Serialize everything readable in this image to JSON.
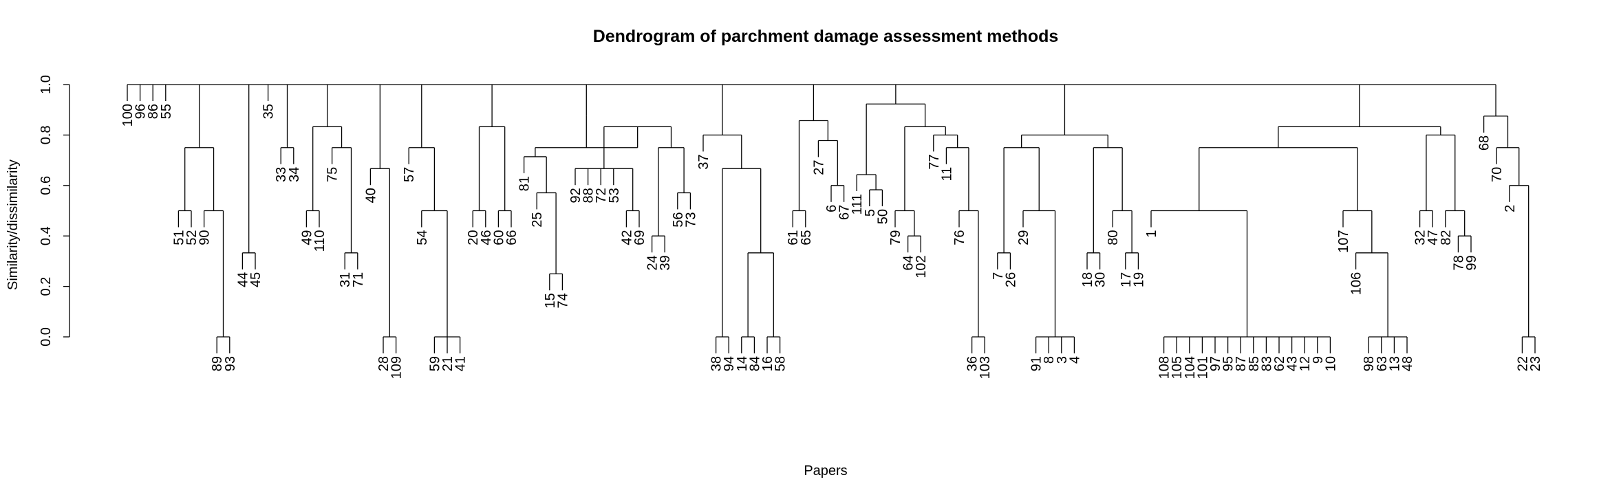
{
  "chart_data": {
    "type": "dendrogram",
    "title": "Dendrogram of parchment damage assessment methods",
    "xlabel": "Papers",
    "ylabel": "Similarity/dissimilarity",
    "ylim": [
      0,
      1
    ],
    "y_ticks": [
      "0.0",
      "0.2",
      "0.4",
      "0.6",
      "0.8",
      "1.0"
    ],
    "tree": {
      "h": 1,
      "c": [
        "100",
        "96",
        "86",
        "55",
        {
          "h": 0.75,
          "c": [
            {
              "h": 0.5,
              "c": [
                "51",
                "52"
              ]
            },
            {
              "h": 0.5,
              "c": [
                "90",
                {
                  "h": 0,
                  "c": [
                    "89",
                    "93"
                  ]
                }
              ]
            }
          ]
        },
        {
          "h": 0.333,
          "c": [
            "44",
            "45"
          ]
        },
        "35",
        {
          "h": 0.75,
          "c": [
            "33",
            "34"
          ]
        },
        {
          "h": 0.833,
          "c": [
            {
              "h": 0.5,
              "c": [
                "49",
                "110"
              ]
            },
            {
              "h": 0.75,
              "c": [
                "75",
                {
                  "h": 0.333,
                  "c": [
                    "31",
                    "71"
                  ]
                }
              ]
            }
          ]
        },
        {
          "h": 0.667,
          "c": [
            "40",
            {
              "h": 0,
              "c": [
                "28",
                "109"
              ]
            }
          ]
        },
        {
          "h": 0.75,
          "c": [
            "57",
            {
              "h": 0.5,
              "c": [
                "54",
                {
                  "h": 0,
                  "c": [
                    "59",
                    "21",
                    "41"
                  ]
                }
              ]
            }
          ]
        },
        {
          "h": 0.833,
          "c": [
            {
              "h": 0.5,
              "c": [
                "20",
                "46"
              ]
            },
            {
              "h": 0.5,
              "c": [
                "60",
                "66"
              ]
            }
          ]
        },
        {
          "h": 0.875,
          "c": [
            {
              "h": 0.75,
              "c": [
                {
                  "h": 0.714,
                  "c": [
                    "81",
                    {
                      "h": 0.571,
                      "c": [
                        "25",
                        {
                          "h": 0.25,
                          "c": [
                            "15",
                            "74"
                          ]
                        }
                      ]
                    }
                  ]
                },
                {
                  "h": 0.833,
                  "c": [
                    {
                      "h": 0.667,
                      "c": [
                        "92",
                        "88",
                        "72",
                        "53",
                        {
                          "h": 0.5,
                          "c": [
                            "42",
                            "69"
                          ]
                        }
                      ]
                    },
                    {
                      "h": 0.75,
                      "c": [
                        {
                          "h": 0.4,
                          "c": [
                            "24",
                            "39"
                          ]
                        },
                        {
                          "h": 0.571,
                          "c": [
                            "56",
                            "73"
                          ]
                        }
                      ]
                    }
                  ]
                }
              ]
            }
          ]
        },
        {
          "h": 0.8,
          "c": [
            "37",
            {
              "h": 0.667,
              "c": [
                {
                  "h": 0,
                  "c": [
                    "38",
                    "94"
                  ]
                },
                {
                  "h": 0.333,
                  "c": [
                    {
                      "h": 0,
                      "c": [
                        "14",
                        "84"
                      ]
                    },
                    {
                      "h": 0,
                      "c": [
                        "16",
                        "58"
                      ]
                    }
                  ]
                }
              ]
            }
          ]
        },
        {
          "h": 0.857,
          "c": [
            {
              "h": 0.5,
              "c": [
                "61",
                "65"
              ]
            },
            {
              "h": 0.778,
              "c": [
                "27",
                {
                  "h": 0.6,
                  "c": [
                    "6",
                    "67"
                  ]
                }
              ]
            }
          ]
        },
        {
          "h": 0.923,
          "c": [
            {
              "h": 0.643,
              "c": [
                "111",
                {
                  "h": 0.583,
                  "c": [
                    "5",
                    "50"
                  ]
                }
              ]
            },
            {
              "h": 0.833,
              "c": [
                {
                  "h": 0.5,
                  "c": [
                    "79",
                    {
                      "h": 0.4,
                      "c": [
                        "64",
                        "102"
                      ]
                    }
                  ]
                },
                {
                  "h": 0.8,
                  "c": [
                    "77",
                    {
                      "h": 0.75,
                      "c": [
                        "11",
                        {
                          "h": 0.5,
                          "c": [
                            "76",
                            {
                              "h": 0,
                              "c": [
                                "36",
                                "103"
                              ]
                            }
                          ]
                        }
                      ]
                    }
                  ]
                }
              ]
            }
          ]
        },
        {
          "h": 0.8,
          "c": [
            {
              "h": 0.75,
              "c": [
                {
                  "h": 0.333,
                  "c": [
                    "7",
                    "26"
                  ]
                },
                {
                  "h": 0.5,
                  "c": [
                    "29",
                    {
                      "h": 0,
                      "c": [
                        "91",
                        "8",
                        "3",
                        "4"
                      ]
                    }
                  ]
                }
              ]
            },
            {
              "h": 0.75,
              "c": [
                {
                  "h": 0.333,
                  "c": [
                    "18",
                    "30"
                  ]
                },
                {
                  "h": 0.5,
                  "c": [
                    "80",
                    {
                      "h": 0.333,
                      "c": [
                        "17",
                        "19"
                      ]
                    }
                  ]
                }
              ]
            }
          ]
        },
        {
          "h": 0.833,
          "c": [
            {
              "h": 0.75,
              "c": [
                {
                  "h": 0.5,
                  "c": [
                    "1",
                    {
                      "h": 0,
                      "c": [
                        "108",
                        "105",
                        "104",
                        "101",
                        "97",
                        "95",
                        "87",
                        "85",
                        "83",
                        "62",
                        "43",
                        "12",
                        "9",
                        "10"
                      ]
                    }
                  ]
                },
                {
                  "h": 0.5,
                  "c": [
                    "107",
                    {
                      "h": 0.333,
                      "c": [
                        "106",
                        {
                          "h": 0,
                          "c": [
                            "98",
                            "63",
                            "13",
                            "48"
                          ]
                        }
                      ]
                    }
                  ]
                }
              ]
            },
            {
              "h": 0.8,
              "c": [
                {
                  "h": 0.5,
                  "c": [
                    "32",
                    "47"
                  ]
                },
                {
                  "h": 0.5,
                  "c": [
                    "82",
                    {
                      "h": 0.4,
                      "c": [
                        "78",
                        "99"
                      ]
                    }
                  ]
                }
              ]
            }
          ]
        },
        {
          "h": 0.875,
          "c": [
            "68",
            {
              "h": 0.75,
              "c": [
                "70",
                {
                  "h": 0.6,
                  "c": [
                    "2",
                    {
                      "h": 0,
                      "c": [
                        "22",
                        "23"
                      ]
                    }
                  ]
                }
              ]
            }
          ]
        }
      ]
    }
  }
}
